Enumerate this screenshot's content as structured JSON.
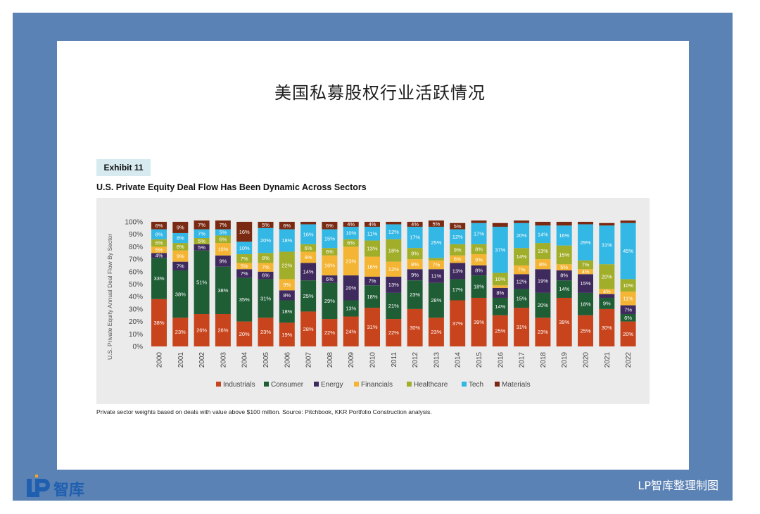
{
  "page": {
    "title": "美国私募股权行业活跃情况",
    "exhibit_label": "Exhibit 11",
    "exhibit_title": "U.S. Private Equity Deal Flow Has Been Dynamic Across Sectors",
    "footnote": "Private sector weights based on deals with value above $100 million. Source: Pitchbook, KKR Portfolio Construction analysis.",
    "logo_text": "智库",
    "credit": "LP智库整理制图",
    "frame_color": "#5b82b4"
  },
  "chart_data": {
    "type": "bar",
    "stacked": true,
    "ylabel": "U.S. Private Equity Annual Deal Flow By Sector",
    "yticks": [
      "0%",
      "10%",
      "20%",
      "30%",
      "40%",
      "50%",
      "60%",
      "70%",
      "80%",
      "90%",
      "100%"
    ],
    "ylim": [
      0,
      100
    ],
    "legend_position": "bottom",
    "categories": [
      "2000",
      "2001",
      "2002",
      "2003",
      "2004",
      "2005",
      "2006",
      "2007",
      "2008",
      "2009",
      "2010",
      "2011",
      "2012",
      "2013",
      "2014",
      "2015",
      "2016",
      "2017",
      "2018",
      "2019",
      "2020",
      "2021",
      "2022"
    ],
    "series": [
      {
        "name": "Industrials",
        "color": "#c8441c",
        "values": [
          38,
          23,
          26,
          26,
          20,
          23,
          19,
          28,
          22,
          24,
          31,
          22,
          30,
          23,
          37,
          39,
          25,
          31,
          23,
          39,
          25,
          30,
          20
        ]
      },
      {
        "name": "Consumer",
        "color": "#1f5d35",
        "values": [
          33,
          38,
          51,
          38,
          35,
          31,
          18,
          25,
          29,
          13,
          18,
          21,
          23,
          28,
          17,
          18,
          14,
          15,
          20,
          14,
          18,
          9,
          6
        ]
      },
      {
        "name": "Energy",
        "color": "#3f2a5e",
        "values": [
          4,
          7,
          5,
          9,
          7,
          6,
          8,
          14,
          6,
          20,
          7,
          13,
          9,
          11,
          13,
          8,
          8,
          12,
          19,
          8,
          15,
          3,
          7
        ]
      },
      {
        "name": "Financials",
        "color": "#f5b534",
        "values": [
          5,
          9,
          0,
          10,
          5,
          7,
          9,
          9,
          16,
          23,
          16,
          12,
          8,
          7,
          6,
          9,
          2,
          7,
          8,
          5,
          4,
          4,
          11
        ]
      },
      {
        "name": "Healthcare",
        "color": "#a1ae2a",
        "values": [
          6,
          6,
          5,
          6,
          7,
          8,
          22,
          6,
          6,
          6,
          13,
          18,
          9,
          2,
          9,
          8,
          10,
          14,
          13,
          15,
          7,
          20,
          10
        ]
      },
      {
        "name": "Tech",
        "color": "#33b7e5",
        "values": [
          8,
          8,
          7,
          5,
          10,
          20,
          18,
          16,
          15,
          10,
          11,
          12,
          17,
          25,
          12,
          17,
          37,
          20,
          14,
          16,
          29,
          31,
          45
        ]
      },
      {
        "name": "Materials",
        "color": "#7a2a12",
        "values": [
          6,
          9,
          7,
          7,
          16,
          5,
          6,
          2,
          6,
          4,
          4,
          2,
          4,
          5,
          5,
          2,
          3,
          2,
          3,
          3,
          2,
          2,
          2
        ]
      }
    ]
  }
}
